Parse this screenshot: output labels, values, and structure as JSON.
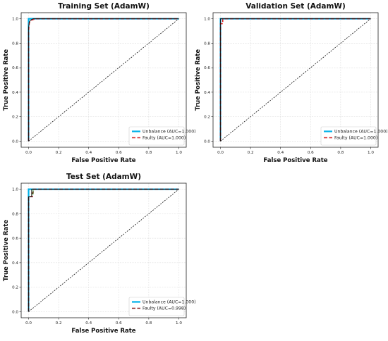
{
  "chart_data": [
    {
      "type": "line",
      "title": "Training Set (AdamW)",
      "xlabel": "False Positive Rate",
      "ylabel": "True Positive Rate",
      "xlim": [
        0,
        1
      ],
      "ylim": [
        0,
        1
      ],
      "xticks": [
        "0.0",
        "0.2",
        "0.4",
        "0.6",
        "0.8",
        "1.0"
      ],
      "yticks": [
        "0.0",
        "0.2",
        "0.4",
        "0.6",
        "0.8",
        "1.0"
      ],
      "grid": true,
      "legend_position": "bottom-right",
      "series": [
        {
          "name": "Unbalance (AUC=1.000)",
          "color": "#00b0e8",
          "style": "solid",
          "points": [
            [
              0,
              0
            ],
            [
              0,
              1
            ],
            [
              1,
              1
            ]
          ]
        },
        {
          "name": "Faulty (AUC=1.000)",
          "color": "#d62020",
          "style": "dashed",
          "points": [
            [
              0,
              0
            ],
            [
              0,
              0.9
            ],
            [
              0.005,
              0.97
            ],
            [
              0.02,
              0.99
            ],
            [
              0.05,
              1
            ],
            [
              1,
              1
            ]
          ]
        },
        {
          "name": "",
          "color": "#111111",
          "style": "solid",
          "points": [
            [
              0,
              0
            ],
            [
              0,
              0.93
            ],
            [
              0.005,
              0.975
            ],
            [
              0.015,
              0.99
            ],
            [
              0.03,
              1
            ],
            [
              1,
              1
            ]
          ]
        },
        {
          "name": "",
          "color": "#111111",
          "style": "dotted",
          "points": [
            [
              0,
              0
            ],
            [
              1,
              1
            ]
          ]
        }
      ]
    },
    {
      "type": "line",
      "title": "Validation Set (AdamW)",
      "xlabel": "False Positive Rate",
      "ylabel": "True Positive Rate",
      "xlim": [
        0,
        1
      ],
      "ylim": [
        0,
        1
      ],
      "xticks": [
        "0.0",
        "0.2",
        "0.4",
        "0.6",
        "0.8",
        "1.0"
      ],
      "yticks": [
        "0.0",
        "0.2",
        "0.4",
        "0.6",
        "0.8",
        "1.0"
      ],
      "grid": true,
      "legend_position": "bottom-right",
      "series": [
        {
          "name": "Unbalance (AUC=1.000)",
          "color": "#00b0e8",
          "style": "solid",
          "points": [
            [
              0,
              0
            ],
            [
              0,
              1
            ],
            [
              1,
              1
            ]
          ]
        },
        {
          "name": "Faulty (AUC=1.000)",
          "color": "#d62020",
          "style": "dashed",
          "points": [
            [
              0,
              0
            ],
            [
              0,
              0.96
            ],
            [
              0.015,
              0.96
            ],
            [
              0.015,
              1
            ],
            [
              1,
              1
            ]
          ]
        },
        {
          "name": "",
          "color": "#111111",
          "style": "solid",
          "points": [
            [
              0,
              0
            ],
            [
              0,
              1
            ],
            [
              1,
              1
            ]
          ]
        },
        {
          "name": "",
          "color": "#111111",
          "style": "dotted",
          "points": [
            [
              0,
              0
            ],
            [
              1,
              1
            ]
          ]
        }
      ]
    },
    {
      "type": "line",
      "title": "Test Set (AdamW)",
      "xlabel": "False Positive Rate",
      "ylabel": "True Positive Rate",
      "xlim": [
        0,
        1
      ],
      "ylim": [
        0,
        1
      ],
      "xticks": [
        "0.0",
        "0.2",
        "0.4",
        "0.6",
        "0.8",
        "1.0"
      ],
      "yticks": [
        "0.0",
        "0.2",
        "0.4",
        "0.6",
        "0.8",
        "1.0"
      ],
      "grid": true,
      "legend_position": "bottom-right",
      "series": [
        {
          "name": "Unbalance (AUC=1.000)",
          "color": "#00b0e8",
          "style": "solid",
          "points": [
            [
              0,
              0
            ],
            [
              0,
              1
            ],
            [
              1,
              1
            ]
          ]
        },
        {
          "name": "Faulty (AUC=0.998)",
          "color": "#8b1a1a",
          "style": "dashed",
          "points": [
            [
              0,
              0
            ],
            [
              0,
              0.94
            ],
            [
              0.025,
              0.94
            ],
            [
              0.025,
              0.97
            ],
            [
              0.03,
              0.97
            ],
            [
              0.03,
              1
            ],
            [
              1,
              1
            ]
          ]
        },
        {
          "name": "",
          "color": "#111111",
          "style": "solid",
          "points": [
            [
              0,
              0
            ],
            [
              0,
              0.94
            ],
            [
              0.02,
              0.94
            ],
            [
              0.02,
              1
            ],
            [
              1,
              1
            ]
          ]
        },
        {
          "name": "",
          "color": "#2e8b2e",
          "style": "solid",
          "points": [
            [
              0.02,
              0.96
            ],
            [
              0.03,
              0.96
            ],
            [
              0.03,
              1
            ]
          ]
        },
        {
          "name": "",
          "color": "#111111",
          "style": "dotted",
          "points": [
            [
              0,
              0
            ],
            [
              1,
              1
            ]
          ]
        }
      ]
    }
  ]
}
